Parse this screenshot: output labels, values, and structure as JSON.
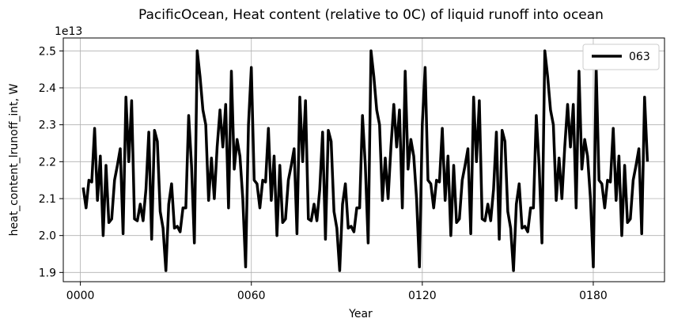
{
  "chart_data": {
    "type": "line",
    "title": "PacificOcean, Heat content (relative to 0C) of liquid runoff into ocean",
    "xlabel": "Year",
    "ylabel": "heat_content_lrunoff_int, W",
    "y_multiplier_label": "1e13",
    "xlim": [
      -6,
      205
    ],
    "ylim": [
      1.875,
      2.535
    ],
    "x_ticks": [
      {
        "value": 0,
        "label": "0000"
      },
      {
        "value": 60,
        "label": "0060"
      },
      {
        "value": 120,
        "label": "0120"
      },
      {
        "value": 180,
        "label": "0180"
      }
    ],
    "y_ticks": [
      {
        "value": 1.9,
        "label": "1.9"
      },
      {
        "value": 2.0,
        "label": "2.0"
      },
      {
        "value": 2.1,
        "label": "2.1"
      },
      {
        "value": 2.2,
        "label": "2.2"
      },
      {
        "value": 2.3,
        "label": "2.3"
      },
      {
        "value": 2.4,
        "label": "2.4"
      },
      {
        "value": 2.5,
        "label": "2.5"
      }
    ],
    "grid": true,
    "legend_position": "top-right",
    "series": [
      {
        "name": "063",
        "color": "#000000",
        "x_start": 1,
        "x_step": 1,
        "values": [
          2.13,
          2.075,
          2.15,
          2.145,
          2.29,
          2.095,
          2.215,
          2.0,
          2.19,
          2.035,
          2.045,
          2.15,
          2.19,
          2.235,
          2.005,
          2.375,
          2.2,
          2.365,
          2.045,
          2.04,
          2.085,
          2.04,
          2.125,
          2.28,
          1.99,
          2.285,
          2.255,
          2.065,
          2.02,
          1.905,
          2.085,
          2.14,
          2.02,
          2.025,
          2.01,
          2.075,
          2.075,
          2.325,
          2.19,
          1.98,
          2.5,
          2.43,
          2.34,
          2.3,
          2.095,
          2.21,
          2.1,
          2.24,
          2.34,
          2.24,
          2.355,
          2.075,
          2.445,
          2.18,
          2.26,
          2.215,
          2.1,
          1.915,
          2.3,
          2.455,
          2.15,
          2.14,
          2.075,
          2.15,
          2.145,
          2.29,
          2.095,
          2.215,
          2.0,
          2.19,
          2.035,
          2.045,
          2.15,
          2.19,
          2.235,
          2.005,
          2.375,
          2.2,
          2.365,
          2.045,
          2.04,
          2.085,
          2.04,
          2.125,
          2.28,
          1.99,
          2.285,
          2.255,
          2.065,
          2.02,
          1.905,
          2.085,
          2.14,
          2.02,
          2.025,
          2.01,
          2.075,
          2.075,
          2.325,
          2.19,
          1.98,
          2.5,
          2.43,
          2.34,
          2.3,
          2.095,
          2.21,
          2.1,
          2.24,
          2.355,
          2.24,
          2.34,
          2.075,
          2.445,
          2.18,
          2.26,
          2.215,
          2.1,
          1.915,
          2.3,
          2.455,
          2.15,
          2.14,
          2.075,
          2.15,
          2.145,
          2.29,
          2.095,
          2.215,
          2.0,
          2.19,
          2.035,
          2.045,
          2.15,
          2.19,
          2.235,
          2.005,
          2.375,
          2.2,
          2.365,
          2.045,
          2.04,
          2.085,
          2.04,
          2.125,
          2.28,
          1.99,
          2.285,
          2.255,
          2.065,
          2.02,
          1.905,
          2.085,
          2.14,
          2.02,
          2.025,
          2.01,
          2.075,
          2.075,
          2.325,
          2.19,
          1.98,
          2.5,
          2.43,
          2.34,
          2.3,
          2.095,
          2.21,
          2.1,
          2.24,
          2.355,
          2.24,
          2.355,
          2.075,
          2.445,
          2.18,
          2.26,
          2.215,
          2.1,
          1.915,
          2.455,
          2.15,
          2.14,
          2.075,
          2.15,
          2.145,
          2.29,
          2.095,
          2.215,
          2.0,
          2.19,
          2.035,
          2.045,
          2.15,
          2.19,
          2.235,
          2.005,
          2.375,
          2.2
        ]
      }
    ]
  }
}
